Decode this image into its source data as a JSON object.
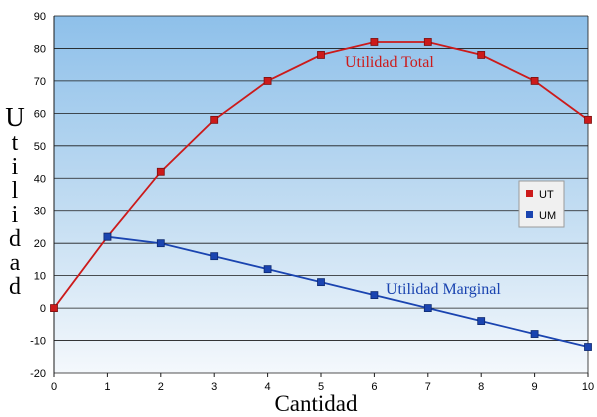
{
  "chart_data": {
    "type": "line",
    "title": "",
    "xlabel": "Cantidad",
    "ylabel": "Utilidad",
    "xlim": [
      0,
      10
    ],
    "ylim": [
      -20,
      90
    ],
    "x_ticks": [
      0,
      1,
      2,
      3,
      4,
      5,
      6,
      7,
      8,
      9,
      10
    ],
    "y_ticks": [
      -20,
      -10,
      0,
      10,
      20,
      30,
      40,
      50,
      60,
      70,
      80,
      90
    ],
    "grid": true,
    "legend_position": "right",
    "series": [
      {
        "name": "UT",
        "color": "#cc1a1a",
        "x": [
          0,
          1,
          2,
          3,
          4,
          5,
          6,
          7,
          8,
          9,
          10
        ],
        "y": [
          0,
          22,
          42,
          58,
          70,
          78,
          82,
          82,
          78,
          70,
          58
        ]
      },
      {
        "name": "UM",
        "color": "#1a44b0",
        "x": [
          1,
          2,
          3,
          4,
          5,
          6,
          7,
          8,
          9,
          10
        ],
        "y": [
          22,
          20,
          16,
          12,
          8,
          4,
          0,
          -4,
          -8,
          -12
        ]
      }
    ],
    "annotations": [
      {
        "text": "Utilidad Total",
        "color": "#cc1a1a"
      },
      {
        "text": "Utilidad Marginal",
        "color": "#1a44b0"
      }
    ]
  }
}
